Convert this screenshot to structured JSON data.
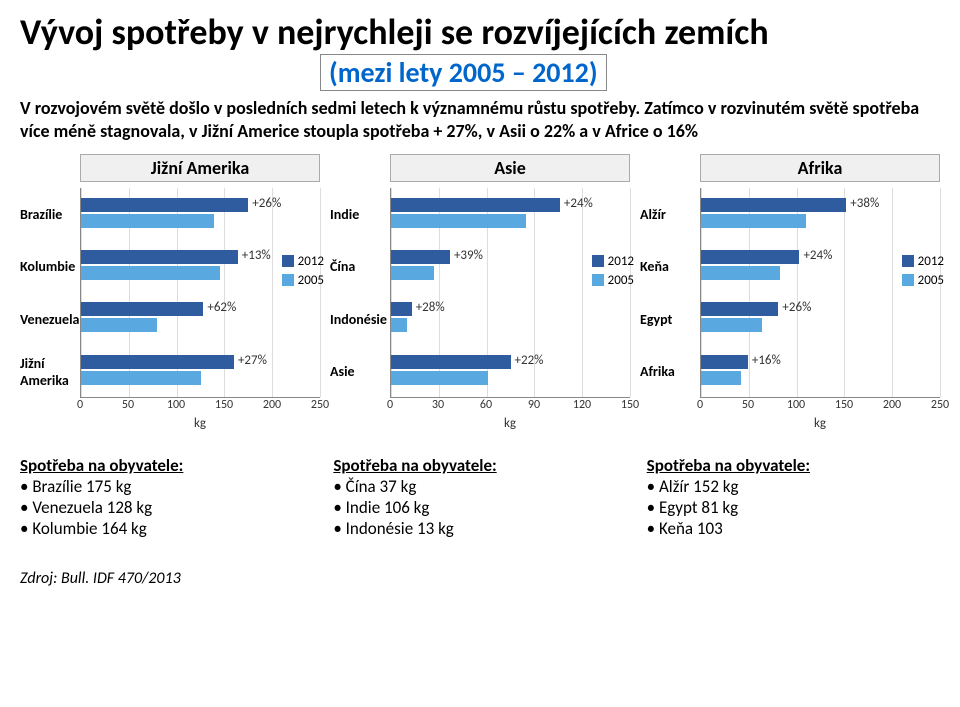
{
  "title": "Vývoj spotřeby v nejrychleji se rozvíjejících zemích",
  "subtitle": "(mezi lety 2005 – 2012)",
  "intro": "V rozvojovém světě došlo v posledních sedmi letech k významnému růstu spotřeby. Zatímco v rozvinutém světě spotřeba více méně stagnovala, v Jižní Americe stoupla spotřeba + 27%, v Asii o 22% a v Africe o 16%",
  "colors": {
    "bar2012": "#2f5c9f",
    "bar2005": "#5aa8e0",
    "grid": "#dddddd",
    "axis": "#888888"
  },
  "legend": {
    "y2012": "2012",
    "y2005": "2005"
  },
  "xunit": "kg",
  "charts": [
    {
      "region": "Jižní Amerika",
      "xlim": 250,
      "ticks": [
        0,
        50,
        100,
        150,
        200,
        250
      ],
      "rows": [
        {
          "label": "Brazílie",
          "v2012": 175,
          "v2005": 139,
          "pct": "+26%"
        },
        {
          "label": "Kolumbie",
          "v2012": 164,
          "v2005": 145,
          "pct": "+13%"
        },
        {
          "label": "Venezuela",
          "v2012": 128,
          "v2005": 79,
          "pct": "+62%"
        },
        {
          "label": "Jižní Amerika",
          "v2012": 160,
          "v2005": 126,
          "pct": "+27%"
        }
      ]
    },
    {
      "region": "Asie",
      "xlim": 150,
      "ticks": [
        0,
        30,
        60,
        90,
        120,
        150
      ],
      "rows": [
        {
          "label": "Indie",
          "v2012": 106,
          "v2005": 85,
          "pct": "+24%"
        },
        {
          "label": "Čína",
          "v2012": 37,
          "v2005": 27,
          "pct": "+39%"
        },
        {
          "label": "Indonésie",
          "v2012": 13,
          "v2005": 10,
          "pct": "+28%"
        },
        {
          "label": "Asie",
          "v2012": 75,
          "v2005": 61,
          "pct": "+22%"
        }
      ]
    },
    {
      "region": "Afrika",
      "xlim": 250,
      "ticks": [
        0,
        50,
        100,
        150,
        200,
        250
      ],
      "rows": [
        {
          "label": "Alžír",
          "v2012": 152,
          "v2005": 110,
          "pct": "+38%"
        },
        {
          "label": "Keňa",
          "v2012": 103,
          "v2005": 83,
          "pct": "+24%"
        },
        {
          "label": "Egypt",
          "v2012": 81,
          "v2005": 64,
          "pct": "+26%"
        },
        {
          "label": "Afrika",
          "v2012": 49,
          "v2005": 42,
          "pct": "+16%"
        }
      ]
    }
  ],
  "consumption": [
    {
      "title": "Spotřeba na obyvatele:",
      "items": [
        "Brazílie 175 kg",
        "Venezuela 128 kg",
        "Kolumbie 164 kg"
      ]
    },
    {
      "title": "Spotřeba na obyvatele:",
      "items": [
        "Čína 37 kg",
        "Indie 106 kg",
        "Indonésie 13 kg"
      ]
    },
    {
      "title": "Spotřeba na obyvatele:",
      "items": [
        "Alžír 152 kg",
        "Egypt 81 kg",
        "Keňa 103"
      ]
    }
  ],
  "source": "Zdroj: Bull. IDF 470/2013"
}
